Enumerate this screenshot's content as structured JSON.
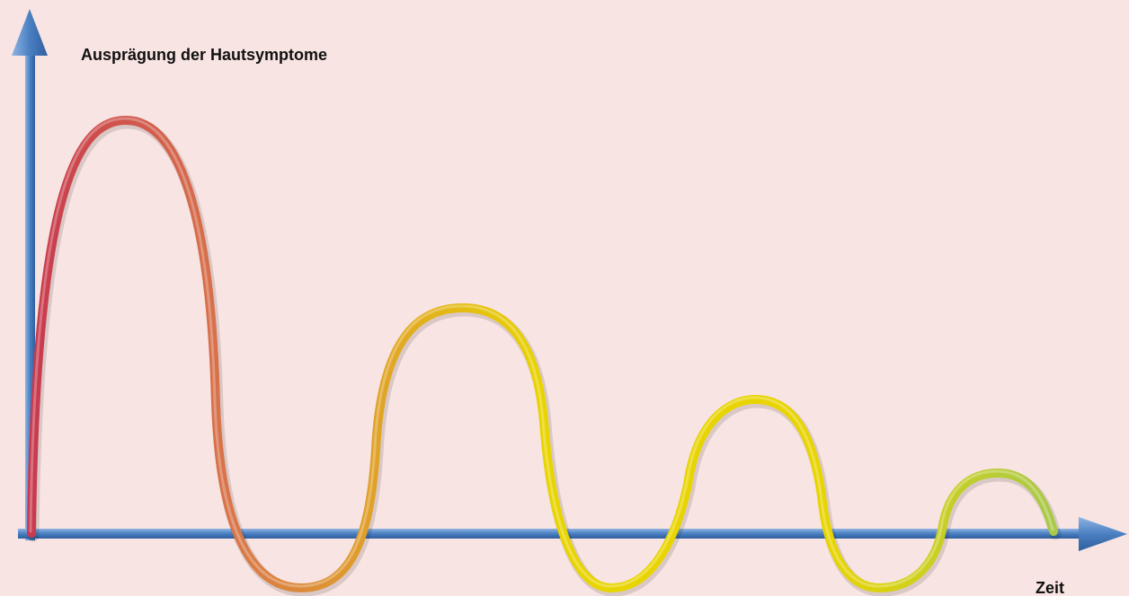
{
  "diagram": {
    "y_axis_label": "Ausprägung der Hautsymptome",
    "x_axis_label": "Zeit",
    "colors": {
      "background": "#f8e4e2",
      "axis": "#4a7fc1",
      "axis_dark": "#2f5f9e",
      "axis_light": "#8fb4e3",
      "curve_start": "#c8384e",
      "curve_orange": "#d9764a",
      "curve_yellow": "#e8d400",
      "curve_end": "#a8c94a"
    }
  }
}
